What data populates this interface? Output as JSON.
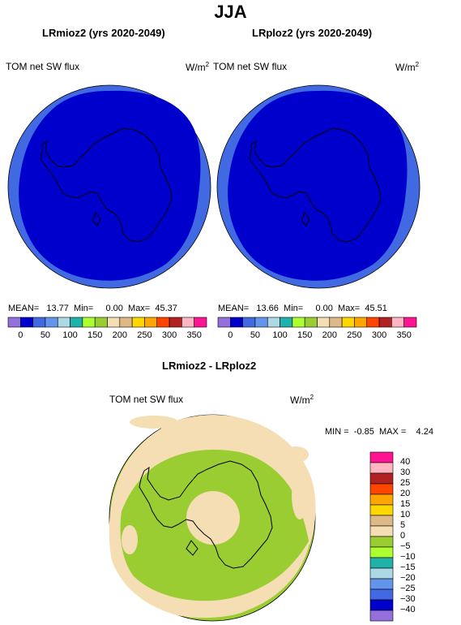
{
  "page": {
    "title": "JJA"
  },
  "panels": [
    {
      "title": "LRmioz2 (yrs 2020-2049)",
      "variable": "TOM net SW flux",
      "unit": "W/m",
      "unit_exp": "2",
      "stats": {
        "mean_label": "MEAN=",
        "mean": "13.77",
        "min_label": "Min=",
        "min": "0.00",
        "max_label": "Max=",
        "max": "45.37"
      }
    },
    {
      "title": "LRploz2 (yrs 2020-2049)",
      "variable": "TOM net SW flux",
      "unit": "W/m",
      "unit_exp": "2",
      "stats": {
        "mean_label": "MEAN=",
        "mean": "13.66",
        "min_label": "Min=",
        "min": "0.00",
        "max_label": "Max=",
        "max": "45.51"
      }
    }
  ],
  "top_colorbar": {
    "colors": [
      "#9370db",
      "#0000cd",
      "#4169e1",
      "#6495ed",
      "#add8e6",
      "#20b2aa",
      "#adff2f",
      "#9acd32",
      "#f5deb3",
      "#deb887",
      "#ffd700",
      "#ffa500",
      "#ff4500",
      "#b22222",
      "#ffb6c1",
      "#ff1493"
    ],
    "ticks": [
      "0",
      "50",
      "100",
      "150",
      "200",
      "250",
      "300",
      "350"
    ]
  },
  "diff": {
    "title": "LRmioz2 - LRploz2",
    "variable": "TOM net SW flux",
    "unit": "W/m",
    "unit_exp": "2",
    "stats": {
      "min_label": "MIN =",
      "min": "-0.85",
      "max_label": "MAX =",
      "max": "4.24"
    },
    "colorbar": {
      "colors": [
        "#ff1493",
        "#ffb6c1",
        "#b22222",
        "#ff4500",
        "#ffa500",
        "#ffd700",
        "#deb887",
        "#f5deb3",
        "#9acd32",
        "#adff2f",
        "#20b2aa",
        "#add8e6",
        "#6495ed",
        "#4169e1",
        "#0000cd",
        "#9370db"
      ],
      "ticks": [
        "40",
        "30",
        "25",
        "20",
        "15",
        "10",
        "5",
        "0",
        "−5",
        "−10",
        "−15",
        "−20",
        "−25",
        "−30",
        "−40"
      ]
    }
  },
  "map_colors": {
    "outer_ring": "#4169e1",
    "inner": "#0000cd",
    "diff_green": "#9acd32",
    "diff_beige": "#f5deb3"
  }
}
